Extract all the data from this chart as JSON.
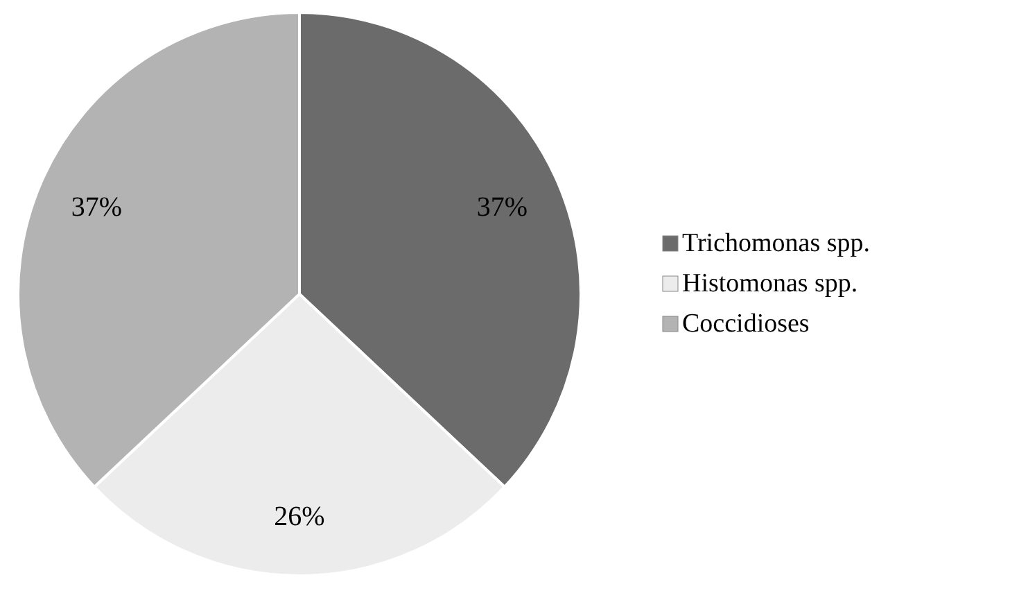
{
  "chart_data": {
    "type": "pie",
    "categories": [
      "Trichomonas spp.",
      "Histomonas spp.",
      "Coccidioses"
    ],
    "values": [
      37,
      26,
      37
    ],
    "colors": [
      "#6b6b6b",
      "#ececec",
      "#b3b3b3"
    ],
    "value_labels": [
      "37%",
      "26%",
      "37%"
    ],
    "legend": "right"
  }
}
